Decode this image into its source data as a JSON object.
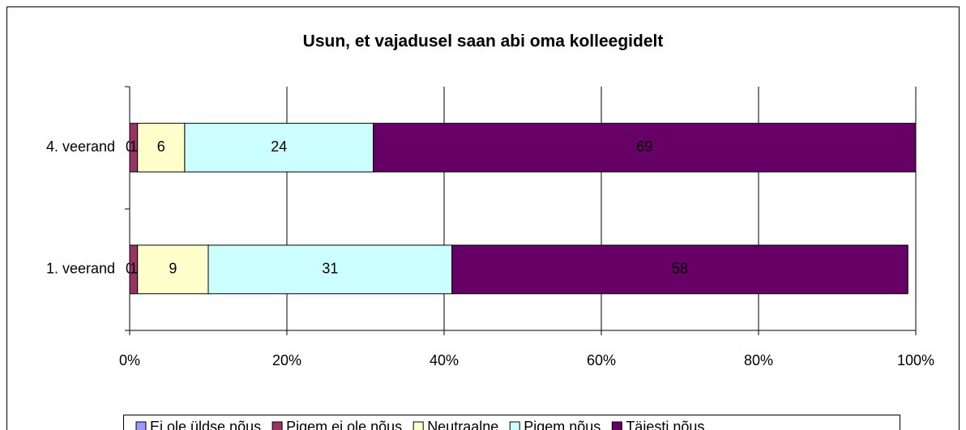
{
  "chart_data": {
    "type": "stacked-bar-horizontal",
    "title": "Usun, et vajadusel saan abi oma kolleegidelt",
    "categories": [
      "4. veerand",
      "1. veerand"
    ],
    "series": [
      {
        "name": "Ei ole üldse nõus",
        "color": "#9999ff",
        "values": [
          0,
          0
        ]
      },
      {
        "name": "Pigem ei ole nõus",
        "color": "#993366",
        "values": [
          1,
          1
        ]
      },
      {
        "name": "Neutraalne",
        "color": "#ffffcc",
        "values": [
          6,
          9
        ]
      },
      {
        "name": "Pigem nõus",
        "color": "#ccffff",
        "values": [
          24,
          31
        ]
      },
      {
        "name": "Täiesti nõus",
        "color": "#660066",
        "values": [
          69,
          58
        ]
      }
    ],
    "xlim": [
      0,
      100
    ],
    "xticks": [
      {
        "value": 0,
        "label": "0%"
      },
      {
        "value": 20,
        "label": "20%"
      },
      {
        "value": 40,
        "label": "40%"
      },
      {
        "value": 60,
        "label": "60%"
      },
      {
        "value": 80,
        "label": "80%"
      },
      {
        "value": 100,
        "label": "100%"
      }
    ],
    "grid": true,
    "legend": "bottom"
  }
}
